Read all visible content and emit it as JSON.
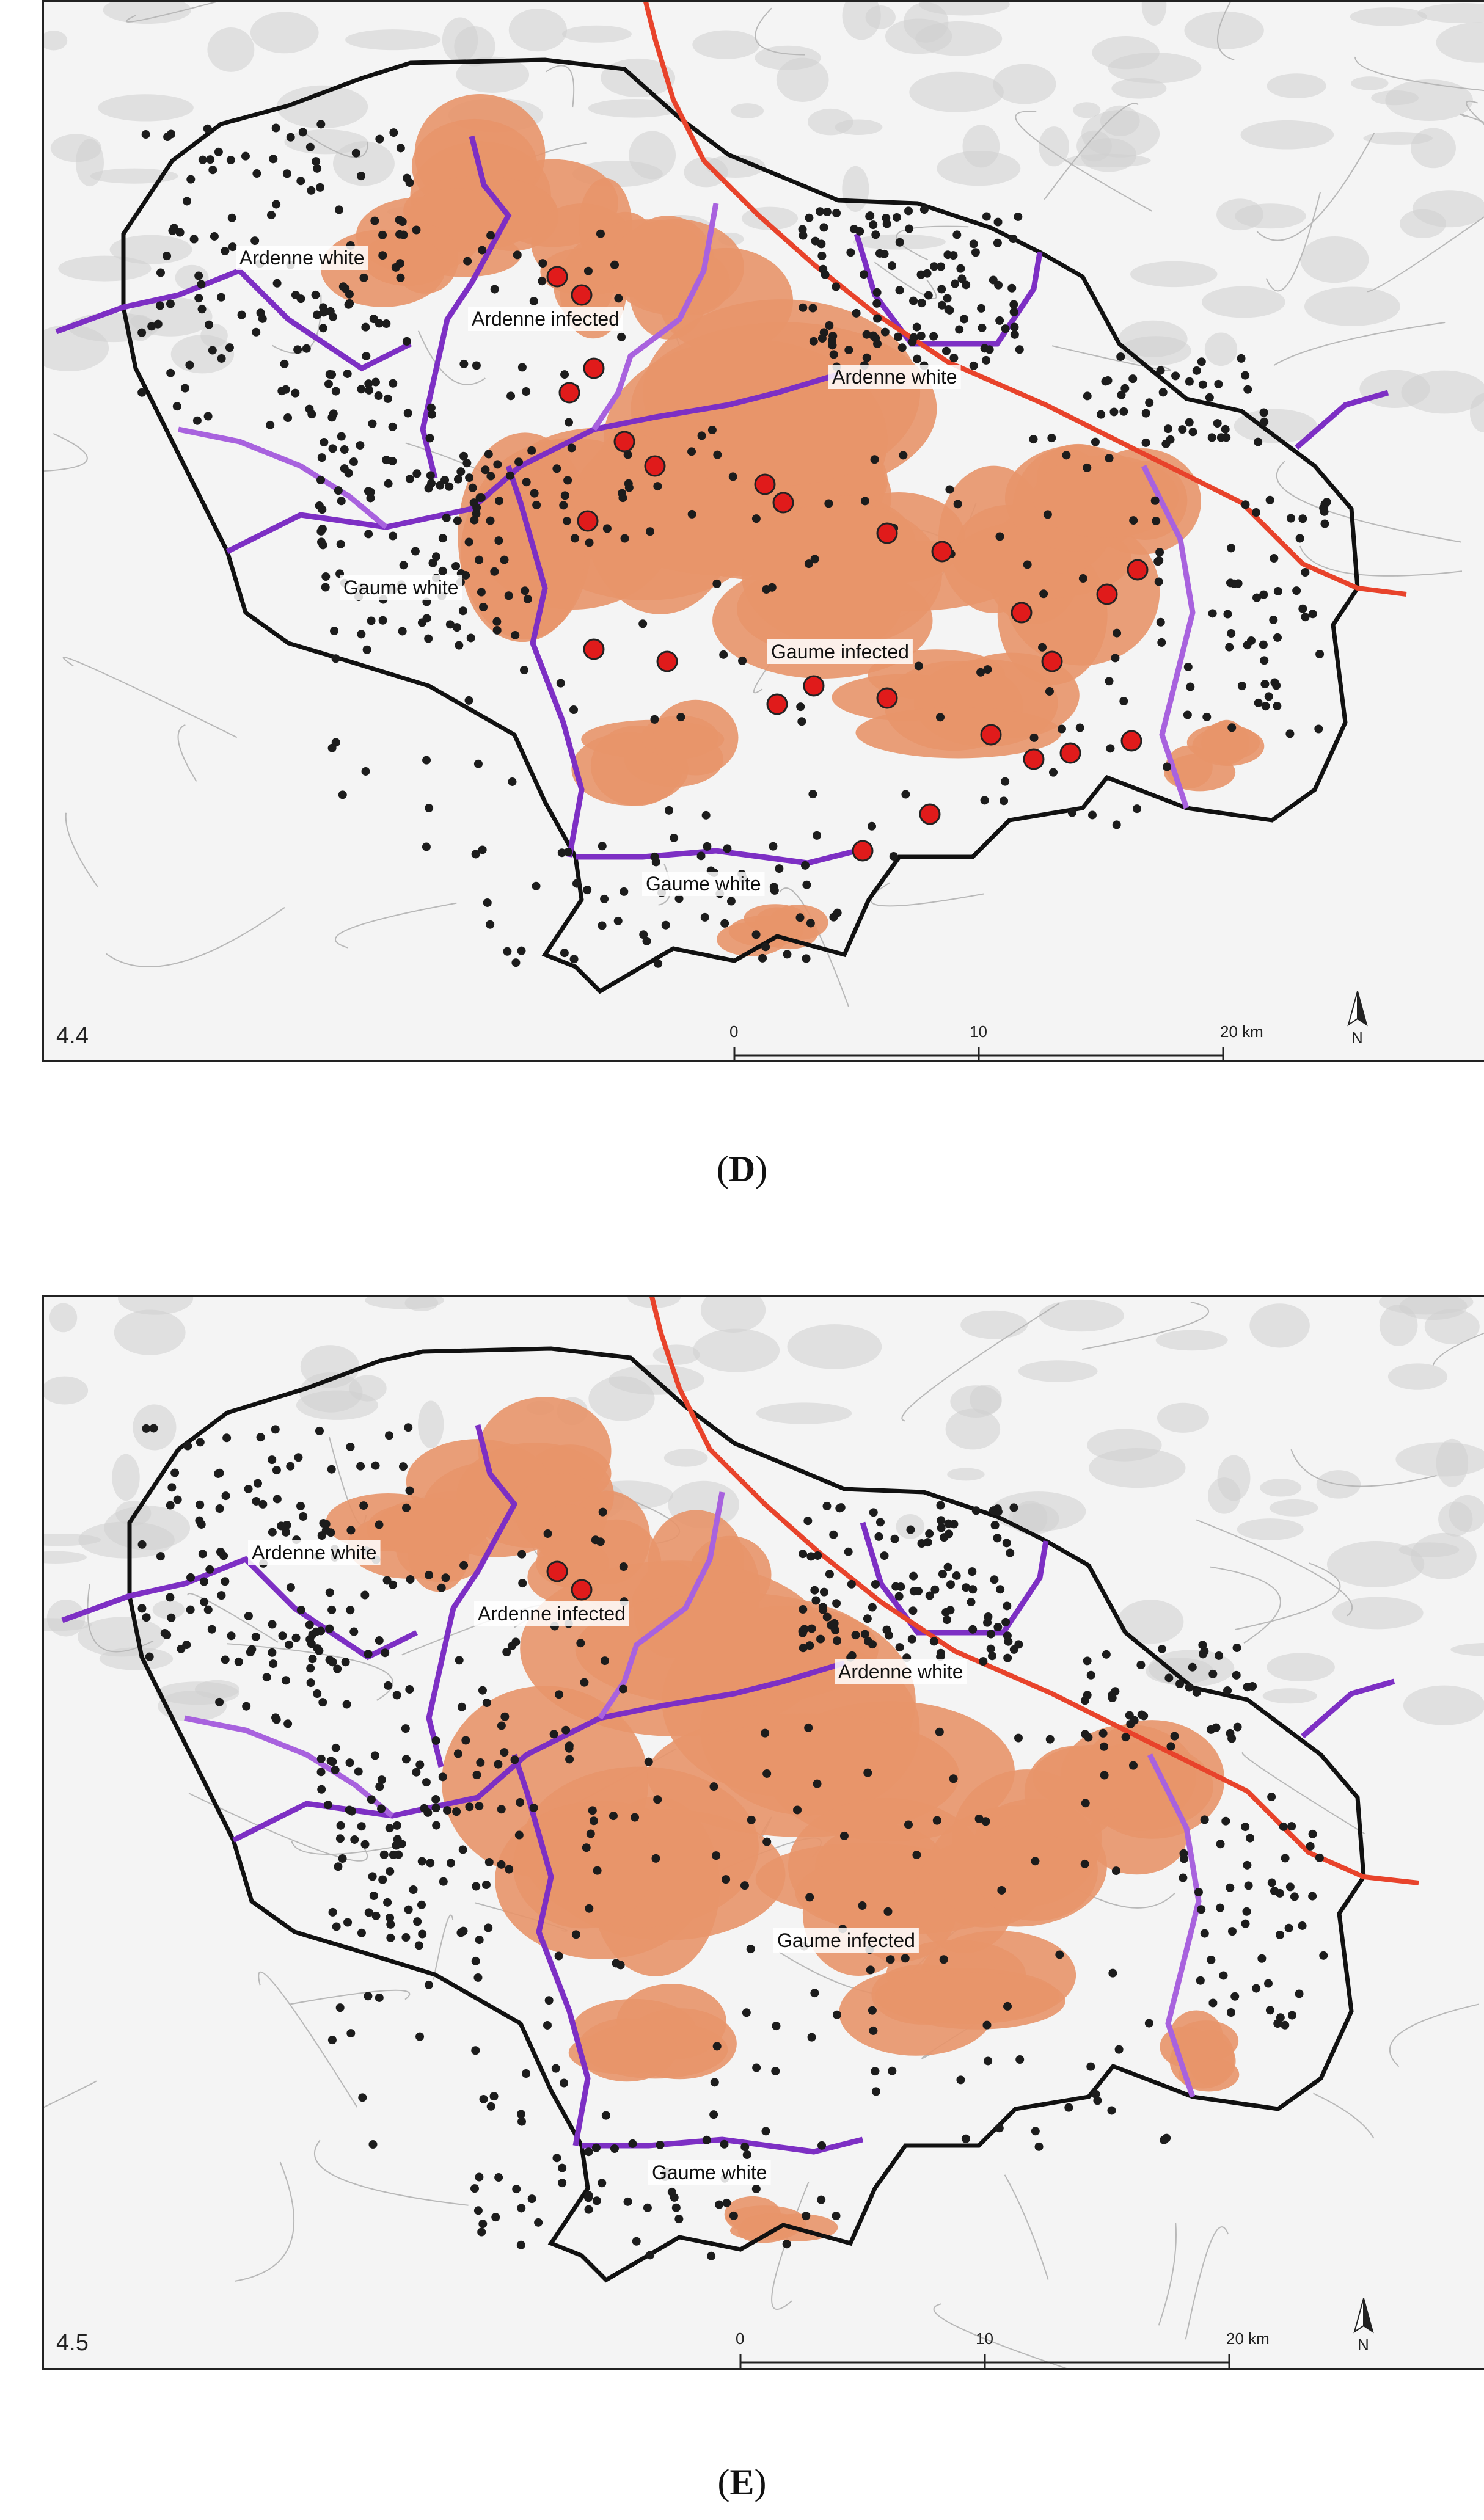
{
  "colors": {
    "infected_area": "#e8956a",
    "outer_boundary": "#111111",
    "zone_boundary": "#7d2fc4",
    "zone_boundary_light": "#a862de",
    "highway": "#e8432b",
    "black_dot": "#1c1c1c",
    "red_dot": "#e01b1b",
    "terrain": "#cfcfcf",
    "background": "#f1f1f1"
  },
  "panels": [
    {
      "id": "D",
      "panel_number": "4.4",
      "caption_letter": "D",
      "zone_labels": {
        "ardenne_white_west": "Ardenne white",
        "ardenne_infected": "Ardenne infected",
        "ardenne_white_east": "Ardenne white",
        "gaume_white_west": "Gaume white",
        "gaume_infected": "Gaume infected",
        "gaume_white_south": "Gaume white"
      },
      "scale_bar": {
        "ticks": [
          "0",
          "10",
          "20 km"
        ]
      },
      "north_arrow": "N",
      "icons": [
        "north-arrow-icon"
      ]
    },
    {
      "id": "E",
      "panel_number": "4.5",
      "caption_letter": "E",
      "zone_labels": {
        "ardenne_white_west": "Ardenne white",
        "ardenne_infected": "Ardenne infected",
        "ardenne_white_east": "Ardenne white",
        "gaume_white_west": "",
        "gaume_infected": "Gaume infected",
        "gaume_white_south": "Gaume white"
      },
      "scale_bar": {
        "ticks": [
          "0",
          "10",
          "20 km"
        ]
      },
      "north_arrow": "N",
      "icons": [
        "north-arrow-icon"
      ]
    }
  ]
}
